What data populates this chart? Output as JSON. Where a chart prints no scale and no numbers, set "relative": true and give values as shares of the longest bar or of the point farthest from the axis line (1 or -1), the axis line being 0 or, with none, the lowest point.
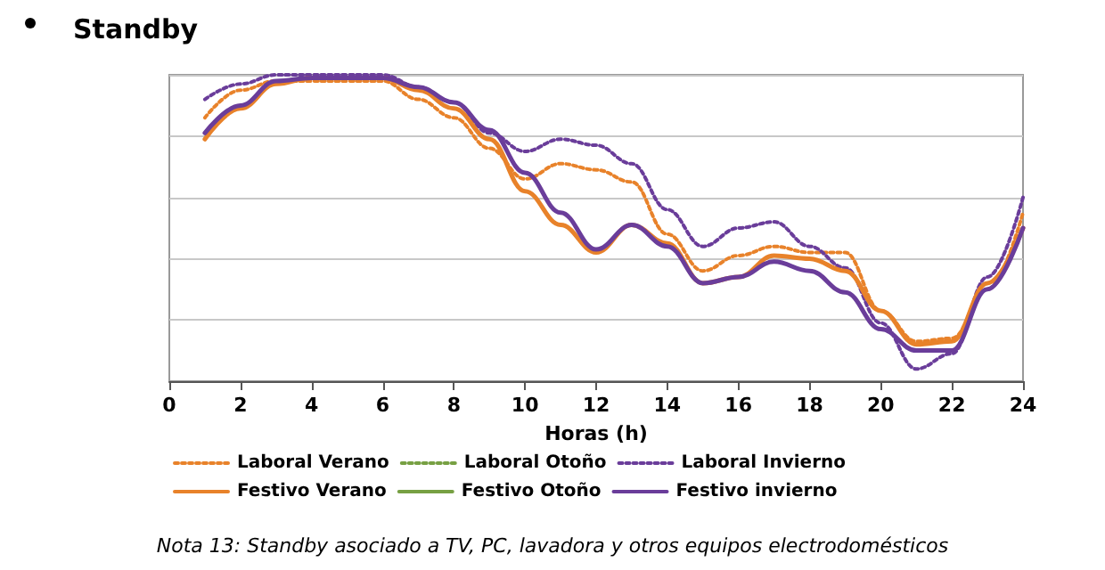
{
  "chart_data": {
    "type": "line",
    "title": "Standby",
    "xlabel": "Horas (h)",
    "relative": true,
    "x": [
      1,
      2,
      3,
      4,
      5,
      6,
      7,
      8,
      9,
      10,
      11,
      12,
      13,
      14,
      15,
      16,
      17,
      18,
      19,
      20,
      21,
      22,
      23,
      24
    ],
    "xlim": [
      0,
      24
    ],
    "xticks": [
      0,
      2,
      4,
      6,
      8,
      10,
      12,
      14,
      16,
      18,
      20,
      22,
      24
    ],
    "grid": "y",
    "legend": "bottom",
    "marker": "none",
    "series": [
      {
        "name": "Laboral Verano",
        "color": "#e8822a",
        "line_style": "dotted",
        "values": [
          0.86,
          0.95,
          0.98,
          0.98,
          0.98,
          0.98,
          0.92,
          0.86,
          0.76,
          0.66,
          0.71,
          0.69,
          0.65,
          0.48,
          0.36,
          0.41,
          0.44,
          0.42,
          0.42,
          0.23,
          0.13,
          0.14,
          0.3,
          0.55
        ]
      },
      {
        "name": "Laboral Otoño",
        "color": "#77a043",
        "line_style": "dotted",
        "values": [
          null,
          null,
          null,
          null,
          null,
          null,
          null,
          null,
          null,
          null,
          null,
          null,
          null,
          null,
          null,
          null,
          null,
          null,
          null,
          null,
          null,
          null,
          null,
          null
        ]
      },
      {
        "name": "Laboral Invierno",
        "color": "#6a3d9a",
        "line_style": "dotted",
        "values": [
          0.92,
          0.97,
          1,
          1,
          1,
          1,
          0.96,
          0.91,
          0.81,
          0.75,
          0.79,
          0.77,
          0.71,
          0.56,
          0.44,
          0.5,
          0.52,
          0.44,
          0.37,
          0.19,
          0.04,
          0.09,
          0.34,
          0.6
        ]
      },
      {
        "name": "Festivo Verano",
        "color": "#e8822a",
        "line_style": "solid",
        "values": [
          0.79,
          0.89,
          0.97,
          0.99,
          0.99,
          0.99,
          0.95,
          0.89,
          0.79,
          0.62,
          0.51,
          0.42,
          0.51,
          0.45,
          0.32,
          0.34,
          0.41,
          0.4,
          0.36,
          0.23,
          0.12,
          0.13,
          0.32,
          0.5
        ]
      },
      {
        "name": "Festivo Otoño",
        "color": "#77a043",
        "line_style": "solid",
        "values": [
          null,
          null,
          null,
          null,
          null,
          null,
          null,
          null,
          null,
          null,
          null,
          null,
          null,
          null,
          null,
          null,
          null,
          null,
          null,
          null,
          null,
          null,
          null,
          null
        ]
      },
      {
        "name": "Festivo invierno",
        "color": "#6a3d9a",
        "line_style": "solid",
        "values": [
          0.81,
          0.9,
          0.98,
          0.99,
          0.99,
          0.99,
          0.96,
          0.91,
          0.82,
          0.68,
          0.55,
          0.43,
          0.51,
          0.44,
          0.32,
          0.34,
          0.39,
          0.36,
          0.29,
          0.17,
          0.1,
          0.1,
          0.3,
          0.5
        ]
      }
    ],
    "annotations": [
      "Nota 13: Standby asociado a TV, PC, lavadora y otros equipos electrodomésticos"
    ]
  }
}
